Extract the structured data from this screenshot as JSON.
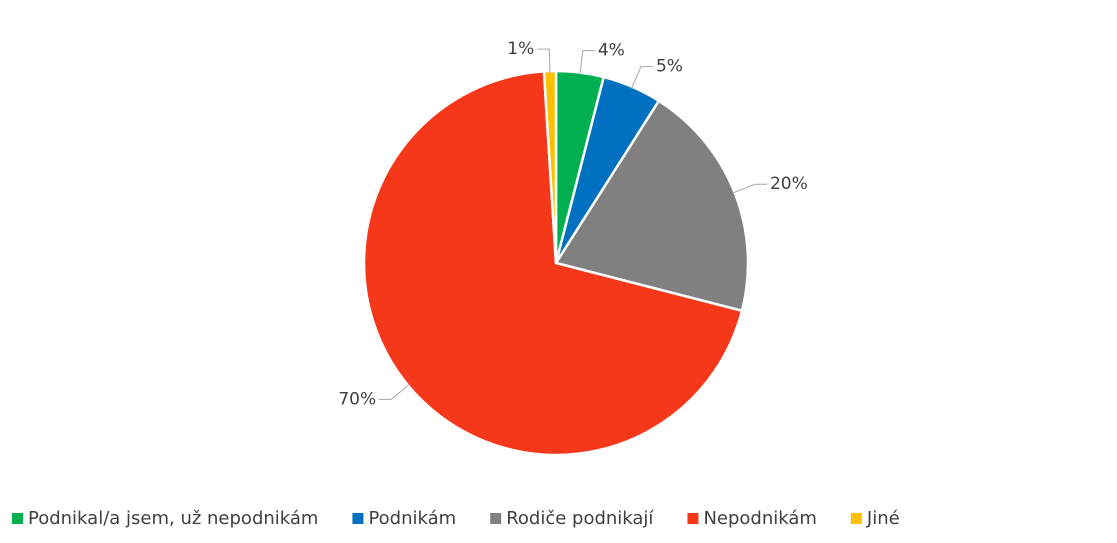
{
  "chart_data": {
    "type": "pie",
    "categories": [
      "Podnikal/a jsem, už nepodnikám",
      "Podnikám",
      "Rodiče podnikají",
      "Nepodnikám",
      "Jiné"
    ],
    "values": [
      4,
      5,
      20,
      70,
      1
    ],
    "value_labels": [
      "4%",
      "5%",
      "20%",
      "70%",
      "1%"
    ],
    "colors": [
      "#00b050",
      "#0070c0",
      "#808080",
      "#f5381a",
      "#ffc000"
    ],
    "legend": "bottom"
  }
}
